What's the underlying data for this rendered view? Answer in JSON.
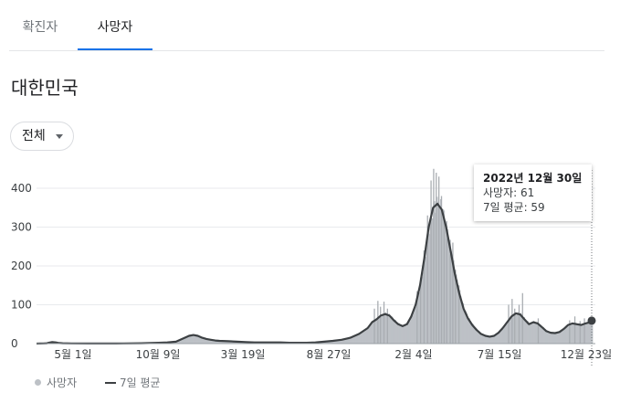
{
  "tabs": [
    "확진자",
    "사망자"
  ],
  "region_title": "대한민국",
  "filter": {
    "selected": "전체"
  },
  "tooltip": {
    "date": "2022년 12월 30일",
    "deaths_line": "사망자: 61",
    "avg_line": "7일 평균: 59"
  },
  "legend": {
    "bars": "사망자",
    "line": "7일 평균"
  },
  "colors": {
    "bars": "#bdc1c6",
    "line": "#3c4043",
    "tab_active": "#1a73e8",
    "grid": "#e8eaed"
  },
  "chart_data": {
    "type": "bar",
    "title": "",
    "ylim": [
      0,
      400
    ],
    "y_ticks": [
      0,
      100,
      200,
      300,
      400
    ],
    "x_tick_labels": [
      "5월 1일",
      "10월 9일",
      "3월 19일",
      "8월 27일",
      "2월 4일",
      "7월 15일",
      "12월 23일"
    ],
    "series": [
      {
        "name": "사망자",
        "kind": "bar",
        "points": [
          [
            0,
            0
          ],
          [
            4,
            0.3
          ],
          [
            8,
            0.5
          ],
          [
            12,
            1
          ],
          [
            14,
            2
          ],
          [
            16,
            3
          ],
          [
            18,
            4
          ],
          [
            22,
            3
          ],
          [
            26,
            1.5
          ],
          [
            30,
            1
          ],
          [
            40,
            0.5
          ],
          [
            60,
            0.3
          ],
          [
            80,
            0.3
          ],
          [
            100,
            0.5
          ],
          [
            120,
            1
          ],
          [
            140,
            2
          ],
          [
            150,
            3
          ],
          [
            160,
            5
          ],
          [
            165,
            10
          ],
          [
            170,
            15
          ],
          [
            175,
            20
          ],
          [
            180,
            22
          ],
          [
            185,
            20
          ],
          [
            190,
            15
          ],
          [
            195,
            12
          ],
          [
            200,
            10
          ],
          [
            205,
            8
          ],
          [
            210,
            7
          ],
          [
            220,
            6
          ],
          [
            230,
            5
          ],
          [
            240,
            4
          ],
          [
            250,
            3
          ],
          [
            260,
            3
          ],
          [
            270,
            3
          ],
          [
            280,
            3
          ],
          [
            290,
            2
          ],
          [
            300,
            2
          ],
          [
            310,
            2
          ],
          [
            320,
            3
          ],
          [
            330,
            5
          ],
          [
            340,
            7
          ],
          [
            350,
            10
          ],
          [
            360,
            15
          ],
          [
            370,
            25
          ],
          [
            380,
            40
          ],
          [
            385,
            55
          ],
          [
            390,
            62
          ],
          [
            395,
            72
          ],
          [
            400,
            76
          ],
          [
            405,
            72
          ],
          [
            410,
            60
          ],
          [
            415,
            50
          ],
          [
            420,
            45
          ],
          [
            425,
            50
          ],
          [
            430,
            70
          ],
          [
            435,
            100
          ],
          [
            440,
            150
          ],
          [
            445,
            220
          ],
          [
            450,
            300
          ],
          [
            455,
            350
          ],
          [
            460,
            360
          ],
          [
            465,
            345
          ],
          [
            470,
            300
          ],
          [
            475,
            240
          ],
          [
            480,
            180
          ],
          [
            485,
            130
          ],
          [
            490,
            90
          ],
          [
            495,
            65
          ],
          [
            500,
            48
          ],
          [
            505,
            35
          ],
          [
            510,
            25
          ],
          [
            515,
            20
          ],
          [
            520,
            18
          ],
          [
            525,
            20
          ],
          [
            530,
            28
          ],
          [
            535,
            40
          ],
          [
            540,
            55
          ],
          [
            545,
            70
          ],
          [
            550,
            78
          ],
          [
            555,
            75
          ],
          [
            560,
            62
          ],
          [
            565,
            50
          ],
          [
            570,
            55
          ],
          [
            575,
            52
          ],
          [
            580,
            42
          ],
          [
            585,
            32
          ],
          [
            590,
            28
          ],
          [
            595,
            27
          ],
          [
            600,
            30
          ],
          [
            605,
            38
          ],
          [
            610,
            48
          ],
          [
            615,
            52
          ],
          [
            620,
            50
          ],
          [
            625,
            48
          ],
          [
            630,
            52
          ],
          [
            635,
            55
          ],
          [
            637,
            61
          ]
        ]
      },
      {
        "name": "7일 평균",
        "kind": "line",
        "points": [
          [
            0,
            0
          ],
          [
            4,
            0.3
          ],
          [
            8,
            0.5
          ],
          [
            12,
            1
          ],
          [
            14,
            2
          ],
          [
            16,
            3
          ],
          [
            18,
            4
          ],
          [
            22,
            3
          ],
          [
            26,
            1.5
          ],
          [
            30,
            1
          ],
          [
            40,
            0.5
          ],
          [
            60,
            0.3
          ],
          [
            80,
            0.3
          ],
          [
            100,
            0.5
          ],
          [
            120,
            1
          ],
          [
            140,
            2
          ],
          [
            150,
            3
          ],
          [
            160,
            5
          ],
          [
            165,
            10
          ],
          [
            170,
            15
          ],
          [
            175,
            20
          ],
          [
            180,
            22
          ],
          [
            185,
            20
          ],
          [
            190,
            15
          ],
          [
            195,
            12
          ],
          [
            200,
            10
          ],
          [
            205,
            8
          ],
          [
            210,
            7
          ],
          [
            220,
            6
          ],
          [
            230,
            5
          ],
          [
            240,
            4
          ],
          [
            250,
            3
          ],
          [
            260,
            3
          ],
          [
            270,
            3
          ],
          [
            280,
            3
          ],
          [
            290,
            2
          ],
          [
            300,
            2
          ],
          [
            310,
            2
          ],
          [
            320,
            3
          ],
          [
            330,
            5
          ],
          [
            340,
            7
          ],
          [
            350,
            10
          ],
          [
            360,
            15
          ],
          [
            370,
            25
          ],
          [
            380,
            40
          ],
          [
            385,
            55
          ],
          [
            390,
            62
          ],
          [
            395,
            72
          ],
          [
            400,
            76
          ],
          [
            405,
            72
          ],
          [
            410,
            60
          ],
          [
            415,
            50
          ],
          [
            420,
            45
          ],
          [
            425,
            50
          ],
          [
            430,
            70
          ],
          [
            435,
            100
          ],
          [
            440,
            150
          ],
          [
            445,
            220
          ],
          [
            450,
            300
          ],
          [
            455,
            350
          ],
          [
            460,
            360
          ],
          [
            465,
            345
          ],
          [
            470,
            300
          ],
          [
            475,
            240
          ],
          [
            480,
            180
          ],
          [
            485,
            130
          ],
          [
            490,
            90
          ],
          [
            495,
            65
          ],
          [
            500,
            48
          ],
          [
            505,
            35
          ],
          [
            510,
            25
          ],
          [
            515,
            20
          ],
          [
            520,
            18
          ],
          [
            525,
            20
          ],
          [
            530,
            28
          ],
          [
            535,
            40
          ],
          [
            540,
            55
          ],
          [
            545,
            70
          ],
          [
            550,
            78
          ],
          [
            555,
            75
          ],
          [
            560,
            62
          ],
          [
            565,
            50
          ],
          [
            570,
            55
          ],
          [
            575,
            52
          ],
          [
            580,
            42
          ],
          [
            585,
            32
          ],
          [
            590,
            28
          ],
          [
            595,
            27
          ],
          [
            600,
            30
          ],
          [
            605,
            38
          ],
          [
            610,
            48
          ],
          [
            615,
            52
          ],
          [
            620,
            50
          ],
          [
            625,
            48
          ],
          [
            630,
            52
          ],
          [
            635,
            55
          ],
          [
            637,
            59
          ]
        ]
      }
    ],
    "bar_spikes": [
      [
        387,
        90
      ],
      [
        391,
        110
      ],
      [
        394,
        95
      ],
      [
        398,
        108
      ],
      [
        402,
        90
      ],
      [
        436,
        135
      ],
      [
        440,
        170
      ],
      [
        444,
        240
      ],
      [
        448,
        330
      ],
      [
        452,
        420
      ],
      [
        455,
        450
      ],
      [
        458,
        440
      ],
      [
        461,
        430
      ],
      [
        464,
        380
      ],
      [
        467,
        320
      ],
      [
        470,
        270
      ],
      [
        474,
        230
      ],
      [
        477,
        260
      ],
      [
        480,
        190
      ],
      [
        484,
        150
      ],
      [
        541,
        100
      ],
      [
        545,
        115
      ],
      [
        548,
        90
      ],
      [
        553,
        100
      ],
      [
        557,
        130
      ],
      [
        575,
        65
      ],
      [
        611,
        60
      ],
      [
        617,
        70
      ],
      [
        623,
        58
      ],
      [
        628,
        65
      ]
    ],
    "grid": true
  }
}
